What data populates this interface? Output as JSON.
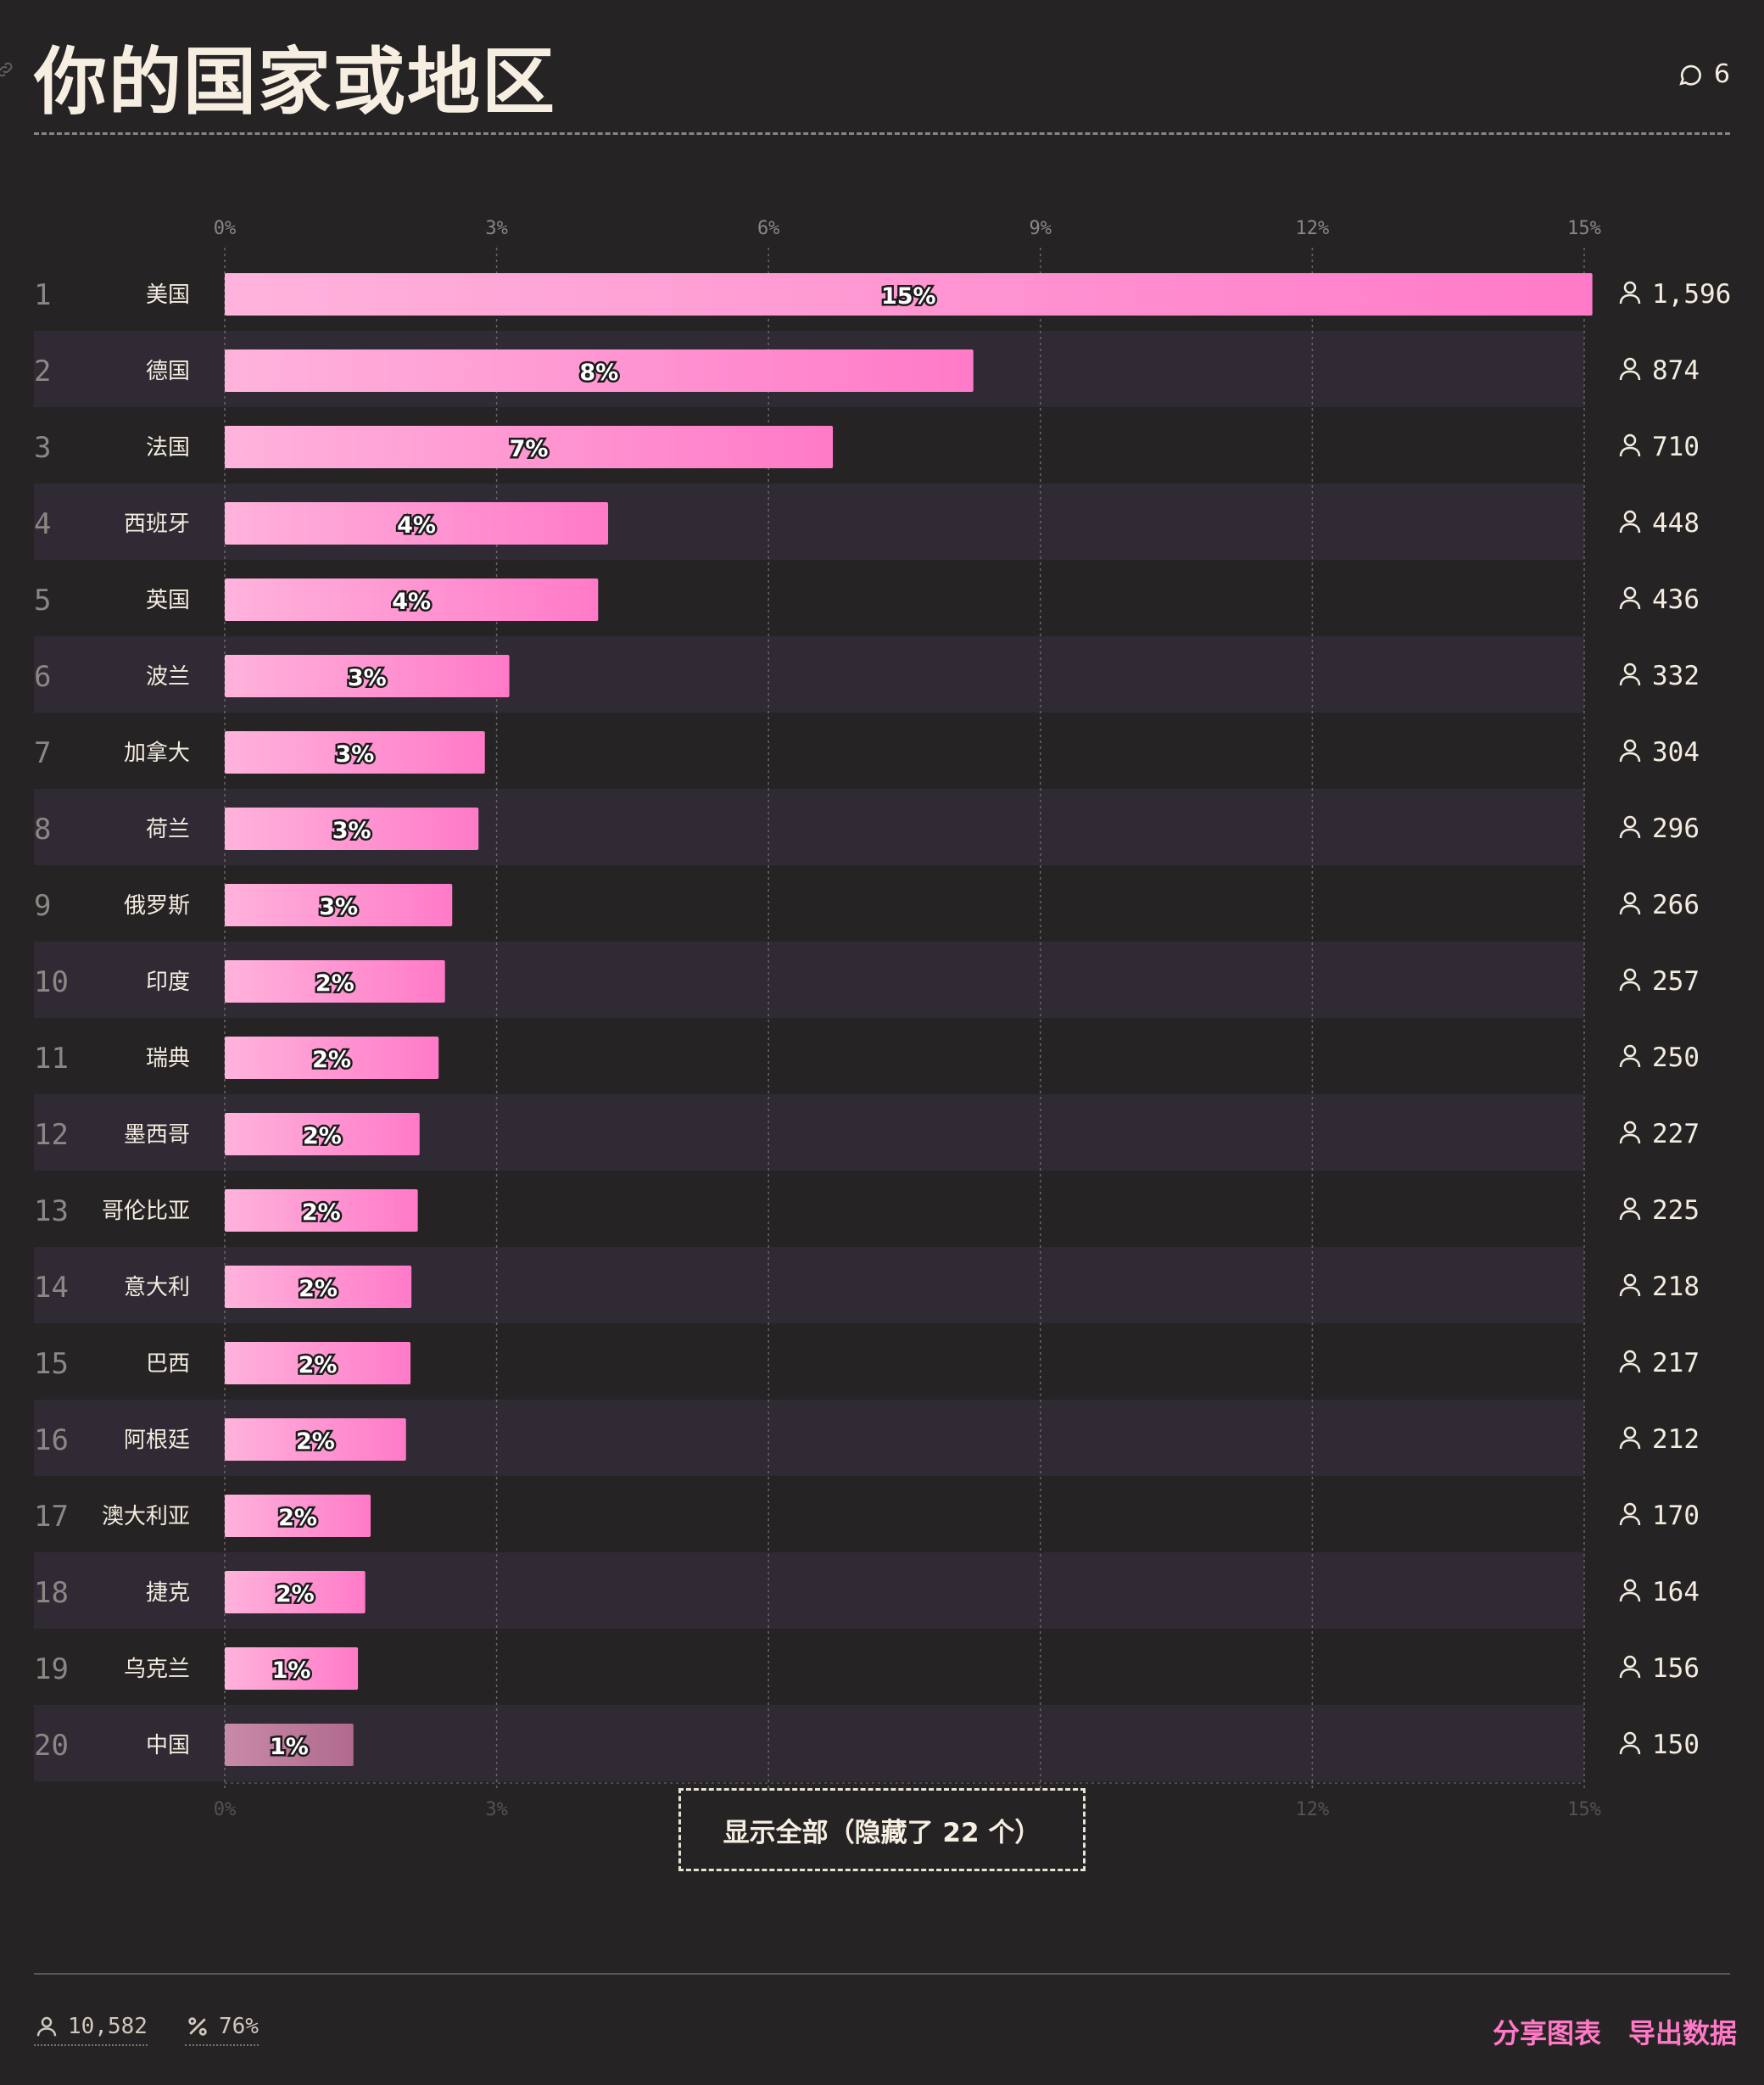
{
  "header": {
    "title": "你的国家或地区",
    "comment_count": "6"
  },
  "chart_data": {
    "type": "bar",
    "orientation": "horizontal",
    "title": "你的国家或地区",
    "xlim": [
      0,
      15
    ],
    "x_ticks": [
      "0%",
      "3%",
      "6%",
      "9%",
      "12%",
      "15%"
    ],
    "grid": true,
    "rows": [
      {
        "rank": "1",
        "label": "美国",
        "percent": 15.09,
        "pct_label": "15%",
        "count": "1,596"
      },
      {
        "rank": "2",
        "label": "德国",
        "percent": 8.26,
        "pct_label": "8%",
        "count": "874"
      },
      {
        "rank": "3",
        "label": "法国",
        "percent": 6.71,
        "pct_label": "7%",
        "count": "710"
      },
      {
        "rank": "4",
        "label": "西班牙",
        "percent": 4.23,
        "pct_label": "4%",
        "count": "448"
      },
      {
        "rank": "5",
        "label": "英国",
        "percent": 4.12,
        "pct_label": "4%",
        "count": "436"
      },
      {
        "rank": "6",
        "label": "波兰",
        "percent": 3.14,
        "pct_label": "3%",
        "count": "332"
      },
      {
        "rank": "7",
        "label": "加拿大",
        "percent": 2.87,
        "pct_label": "3%",
        "count": "304"
      },
      {
        "rank": "8",
        "label": "荷兰",
        "percent": 2.8,
        "pct_label": "3%",
        "count": "296"
      },
      {
        "rank": "9",
        "label": "俄罗斯",
        "percent": 2.51,
        "pct_label": "3%",
        "count": "266"
      },
      {
        "rank": "10",
        "label": "印度",
        "percent": 2.43,
        "pct_label": "2%",
        "count": "257"
      },
      {
        "rank": "11",
        "label": "瑞典",
        "percent": 2.36,
        "pct_label": "2%",
        "count": "250"
      },
      {
        "rank": "12",
        "label": "墨西哥",
        "percent": 2.15,
        "pct_label": "2%",
        "count": "227"
      },
      {
        "rank": "13",
        "label": "哥伦比亚",
        "percent": 2.13,
        "pct_label": "2%",
        "count": "225"
      },
      {
        "rank": "14",
        "label": "意大利",
        "percent": 2.06,
        "pct_label": "2%",
        "count": "218"
      },
      {
        "rank": "15",
        "label": "巴西",
        "percent": 2.05,
        "pct_label": "2%",
        "count": "217"
      },
      {
        "rank": "16",
        "label": "阿根廷",
        "percent": 2.0,
        "pct_label": "2%",
        "count": "212"
      },
      {
        "rank": "17",
        "label": "澳大利亚",
        "percent": 1.61,
        "pct_label": "2%",
        "count": "170"
      },
      {
        "rank": "18",
        "label": "捷克",
        "percent": 1.55,
        "pct_label": "2%",
        "count": "164"
      },
      {
        "rank": "19",
        "label": "乌克兰",
        "percent": 1.47,
        "pct_label": "1%",
        "count": "156"
      },
      {
        "rank": "20",
        "label": "中国",
        "percent": 1.42,
        "pct_label": "1%",
        "count": "150",
        "muted": true
      }
    ]
  },
  "show_all_button": "显示全部（隐藏了  22  个）",
  "footer": {
    "respondents": "10,582",
    "response_rate": "76%",
    "share_label": "分享图表",
    "export_label": "导出数据"
  },
  "colors": {
    "background": "#262324",
    "row_stripe": "#2f2a33",
    "bar_start": "#ffb3dc",
    "bar_end": "#ff7ac8",
    "bar_muted_start": "#c98aa9",
    "bar_muted_end": "#b06a8d",
    "accent": "#ff79c6",
    "text": "#f3ecdf"
  }
}
